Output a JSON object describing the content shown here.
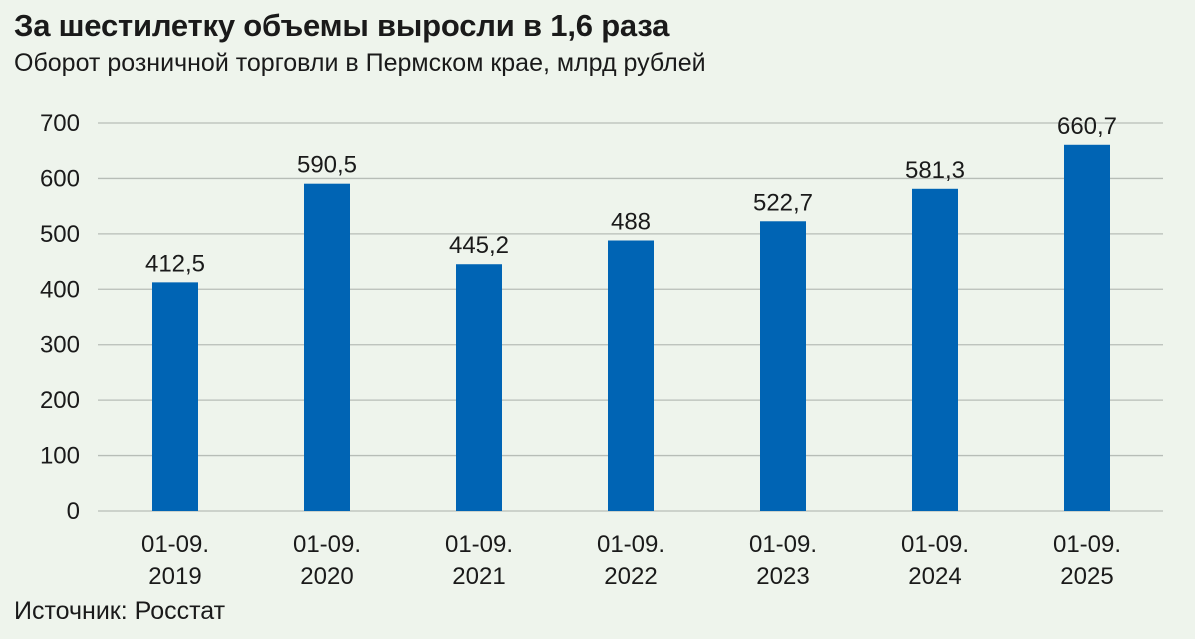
{
  "title": "За шестилетку объемы выросли в 1,6 раза",
  "subtitle": "Оборот розничной торговли в Пермском крае, млрд рублей",
  "source": "Источник: Росстат",
  "colors": {
    "bar": "#0064b4",
    "grid": "#b7bdb7",
    "background": "#eef4ec"
  },
  "chart_data": {
    "type": "bar",
    "categories": [
      [
        "01-09.",
        "2019"
      ],
      [
        "01-09.",
        "2020"
      ],
      [
        "01-09.",
        "2021"
      ],
      [
        "01-09.",
        "2022"
      ],
      [
        "01-09.",
        "2023"
      ],
      [
        "01-09.",
        "2024"
      ],
      [
        "01-09.",
        "2025"
      ]
    ],
    "values": [
      412.5,
      590.5,
      445.2,
      488,
      522.7,
      581.3,
      660.7
    ],
    "value_labels": [
      "412,5",
      "590,5",
      "445,2",
      "488",
      "522,7",
      "581,3",
      "660,7"
    ],
    "y_ticks": [
      "0",
      "100",
      "200",
      "300",
      "400",
      "500",
      "600",
      "700"
    ],
    "ylim": [
      0,
      700
    ],
    "grid": true,
    "legend": "none"
  }
}
